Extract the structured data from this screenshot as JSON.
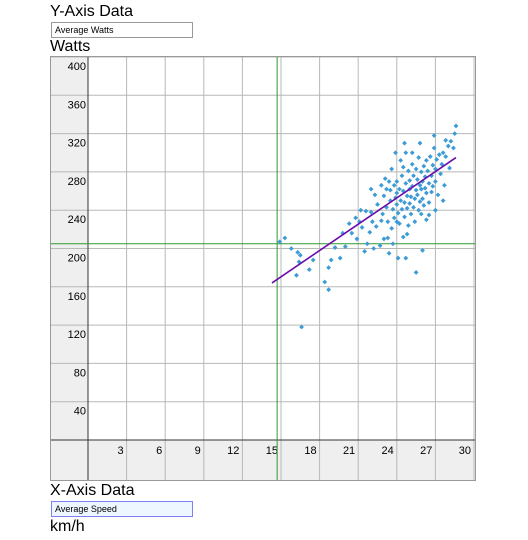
{
  "y_axis": {
    "section_title": "Y-Axis Data",
    "field_value": "Average Watts",
    "unit_label": "Watts"
  },
  "x_axis": {
    "section_title": "X-Axis Data",
    "field_value": "Average Speed",
    "unit_label": "km/h"
  },
  "colors": {
    "points": "#3d9bd6",
    "regression": "#6a0dad",
    "crosshair": "#2e9a2e",
    "grid": "#b8b8b8",
    "axis_band": "#efefef"
  },
  "chart_data": {
    "type": "scatter",
    "xlim": [
      0,
      30
    ],
    "ylim": [
      0,
      400
    ],
    "x_ticks": [
      3,
      6,
      9,
      12,
      15,
      18,
      21,
      24,
      27,
      30
    ],
    "y_ticks": [
      40,
      80,
      120,
      160,
      200,
      240,
      280,
      320,
      360,
      400
    ],
    "crosshair": {
      "x": 14.7,
      "y": 205
    },
    "regression": {
      "x1": 14.3,
      "y1": 164,
      "x2": 28.6,
      "y2": 295
    },
    "points": [
      [
        14.9,
        207
      ],
      [
        15.3,
        211
      ],
      [
        15.8,
        200
      ],
      [
        16.3,
        196
      ],
      [
        16.5,
        193
      ],
      [
        16.4,
        186
      ],
      [
        16.2,
        172
      ],
      [
        16.6,
        118
      ],
      [
        17.2,
        178
      ],
      [
        17.5,
        188
      ],
      [
        18.4,
        165
      ],
      [
        18.7,
        180
      ],
      [
        18.7,
        157
      ],
      [
        18.9,
        188
      ],
      [
        19.2,
        201
      ],
      [
        19.6,
        190
      ],
      [
        19.8,
        216
      ],
      [
        20.0,
        202
      ],
      [
        20.3,
        226
      ],
      [
        20.5,
        216
      ],
      [
        20.8,
        232
      ],
      [
        20.9,
        210
      ],
      [
        21.1,
        228
      ],
      [
        21.3,
        222
      ],
      [
        21.5,
        197
      ],
      [
        21.7,
        205
      ],
      [
        21.6,
        239
      ],
      [
        21.9,
        217
      ],
      [
        22.0,
        238
      ],
      [
        22.1,
        228
      ],
      [
        22.3,
        256
      ],
      [
        22.5,
        246
      ],
      [
        22.7,
        203
      ],
      [
        22.8,
        229
      ],
      [
        22.9,
        236
      ],
      [
        23.0,
        255
      ],
      [
        23.1,
        273
      ],
      [
        23.2,
        262
      ],
      [
        23.2,
        243
      ],
      [
        23.3,
        228
      ],
      [
        23.3,
        211
      ],
      [
        23.4,
        195
      ],
      [
        23.5,
        250
      ],
      [
        23.5,
        261
      ],
      [
        23.6,
        283
      ],
      [
        23.6,
        221
      ],
      [
        23.7,
        241
      ],
      [
        23.8,
        266
      ],
      [
        23.8,
        232
      ],
      [
        23.9,
        253
      ],
      [
        24.0,
        246
      ],
      [
        24.0,
        258
      ],
      [
        24.0,
        270
      ],
      [
        24.1,
        237
      ],
      [
        24.2,
        262
      ],
      [
        24.2,
        226
      ],
      [
        24.3,
        292
      ],
      [
        24.3,
        250
      ],
      [
        24.4,
        241
      ],
      [
        24.4,
        276
      ],
      [
        24.5,
        212
      ],
      [
        24.5,
        260
      ],
      [
        24.6,
        248
      ],
      [
        24.6,
        233
      ],
      [
        24.7,
        268
      ],
      [
        24.7,
        300
      ],
      [
        24.8,
        255
      ],
      [
        24.8,
        242
      ],
      [
        24.9,
        281
      ],
      [
        24.9,
        224
      ],
      [
        25.0,
        262
      ],
      [
        25.0,
        247
      ],
      [
        25.0,
        271
      ],
      [
        25.1,
        236
      ],
      [
        25.1,
        254
      ],
      [
        25.2,
        288
      ],
      [
        25.2,
        265
      ],
      [
        25.3,
        243
      ],
      [
        25.3,
        276
      ],
      [
        25.4,
        252
      ],
      [
        25.4,
        228
      ],
      [
        25.5,
        261
      ],
      [
        25.5,
        283
      ],
      [
        25.6,
        272
      ],
      [
        25.6,
        256
      ],
      [
        25.7,
        240
      ],
      [
        25.7,
        295
      ],
      [
        25.8,
        266
      ],
      [
        25.8,
        249
      ],
      [
        25.9,
        280
      ],
      [
        25.9,
        262
      ],
      [
        26.0,
        270
      ],
      [
        26.0,
        252
      ],
      [
        26.1,
        286
      ],
      [
        26.1,
        245
      ],
      [
        26.2,
        275
      ],
      [
        26.2,
        263
      ],
      [
        26.3,
        292
      ],
      [
        26.3,
        258
      ],
      [
        26.4,
        281
      ],
      [
        26.5,
        268
      ],
      [
        26.5,
        248
      ],
      [
        26.6,
        296
      ],
      [
        26.7,
        276
      ],
      [
        26.7,
        259
      ],
      [
        26.8,
        287
      ],
      [
        26.8,
        265
      ],
      [
        26.9,
        305
      ],
      [
        27.0,
        283
      ],
      [
        27.0,
        270
      ],
      [
        27.1,
        293
      ],
      [
        27.2,
        256
      ],
      [
        27.3,
        298
      ],
      [
        27.4,
        278
      ],
      [
        27.5,
        288
      ],
      [
        27.6,
        300
      ],
      [
        27.7,
        266
      ],
      [
        27.8,
        296
      ],
      [
        28.0,
        307
      ],
      [
        28.1,
        284
      ],
      [
        28.2,
        312
      ],
      [
        28.5,
        320
      ],
      [
        28.6,
        328
      ],
      [
        28.4,
        305
      ],
      [
        22.0,
        262
      ],
      [
        22.4,
        223
      ],
      [
        21.2,
        240
      ],
      [
        24.7,
        190
      ],
      [
        24.1,
        190
      ],
      [
        25.5,
        175
      ],
      [
        26.0,
        198
      ],
      [
        26.5,
        235
      ],
      [
        23.0,
        210
      ],
      [
        22.8,
        266
      ],
      [
        23.9,
        300
      ],
      [
        24.5,
        285
      ],
      [
        25.8,
        310
      ],
      [
        27.0,
        240
      ],
      [
        27.6,
        250
      ],
      [
        26.3,
        230
      ],
      [
        24.8,
        215
      ],
      [
        23.4,
        270
      ],
      [
        25.2,
        300
      ],
      [
        23.7,
        205
      ],
      [
        22.2,
        200
      ],
      [
        24.6,
        310
      ],
      [
        26.9,
        318
      ],
      [
        27.8,
        313
      ],
      [
        25.9,
        236
      ],
      [
        24.0,
        228
      ]
    ]
  }
}
